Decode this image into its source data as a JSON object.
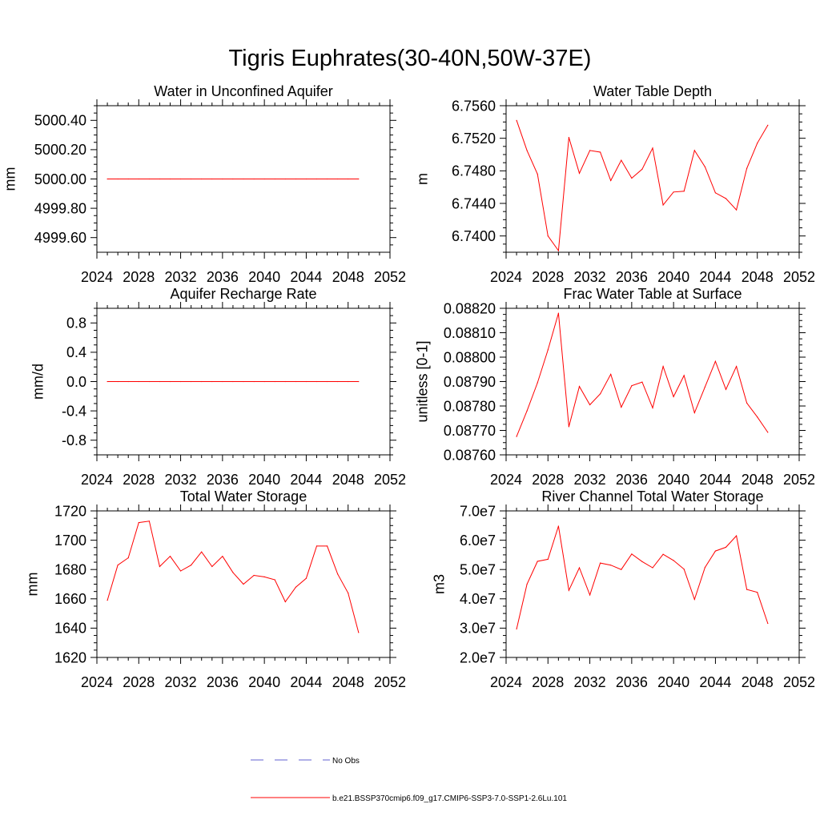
{
  "figure": {
    "title": "Tigris Euphrates(30-40N,50W-37E)"
  },
  "legend": {
    "obs_label": "No Obs",
    "model_label": "b.e21.BSSP370cmip6.f09_g17.CMIP6-SSP3-7.0-SSP1-2.6Lu.101",
    "obs_color": "#6060d0",
    "model_color": "#ff0000"
  },
  "chart_data": [
    {
      "type": "line",
      "title": "Water in Unconfined Aquifer",
      "ylabel": "mm",
      "xlim": [
        2024,
        2052
      ],
      "ylim": [
        4999.5,
        5000.5
      ],
      "xticks": [
        "2024",
        "2028",
        "2032",
        "2036",
        "2040",
        "2044",
        "2048",
        "2052"
      ],
      "yticks": [
        "5000.40",
        "5000.20",
        "5000.00",
        "4999.80",
        "4999.60"
      ],
      "x": [
        2025,
        2026,
        2027,
        2028,
        2029,
        2030,
        2031,
        2032,
        2033,
        2034,
        2035,
        2036,
        2037,
        2038,
        2039,
        2040,
        2041,
        2042,
        2043,
        2044,
        2045,
        2046,
        2047,
        2048,
        2049
      ],
      "series": [
        {
          "values": [
            5000,
            5000,
            5000,
            5000,
            5000,
            5000,
            5000,
            5000,
            5000,
            5000,
            5000,
            5000,
            5000,
            5000,
            5000,
            5000,
            5000,
            5000,
            5000,
            5000,
            5000,
            5000,
            5000,
            5000,
            5000
          ]
        }
      ]
    },
    {
      "type": "line",
      "title": "Water Table Depth",
      "ylabel": "m",
      "xlim": [
        2024,
        2052
      ],
      "ylim": [
        6.738,
        6.756
      ],
      "xticks": [
        "2024",
        "2028",
        "2032",
        "2036",
        "2040",
        "2044",
        "2048",
        "2052"
      ],
      "yticks": [
        "6.7560",
        "6.7520",
        "6.7480",
        "6.7440",
        "6.7400"
      ],
      "x": [
        2025,
        2026,
        2027,
        2028,
        2029,
        2030,
        2031,
        2032,
        2033,
        2034,
        2035,
        2036,
        2037,
        2038,
        2039,
        2040,
        2041,
        2042,
        2043,
        2044,
        2045,
        2046,
        2047,
        2048,
        2049
      ],
      "series": [
        {
          "values": [
            6.7542,
            6.7505,
            6.7476,
            6.74,
            6.7382,
            6.7521,
            6.7477,
            6.7505,
            6.7503,
            6.7468,
            6.7493,
            6.7471,
            6.7482,
            6.7508,
            6.7438,
            6.7454,
            6.7455,
            6.7505,
            6.7485,
            6.7453,
            6.7446,
            6.7432,
            6.7483,
            6.7514,
            6.7536
          ]
        }
      ]
    },
    {
      "type": "line",
      "title": "Aquifer Recharge Rate",
      "ylabel": "mm/d",
      "xlim": [
        2024,
        2052
      ],
      "ylim": [
        -1.0,
        1.0
      ],
      "xticks": [
        "2024",
        "2028",
        "2032",
        "2036",
        "2040",
        "2044",
        "2048",
        "2052"
      ],
      "yticks": [
        "0.8",
        "0.4",
        "0.0",
        "-0.4",
        "-0.8"
      ],
      "x": [
        2025,
        2026,
        2027,
        2028,
        2029,
        2030,
        2031,
        2032,
        2033,
        2034,
        2035,
        2036,
        2037,
        2038,
        2039,
        2040,
        2041,
        2042,
        2043,
        2044,
        2045,
        2046,
        2047,
        2048,
        2049
      ],
      "series": [
        {
          "values": [
            0,
            0,
            0,
            0,
            0,
            0,
            0,
            0,
            0,
            0,
            0,
            0,
            0,
            0,
            0,
            0,
            0,
            0,
            0,
            0,
            0,
            0,
            0,
            0,
            0
          ]
        }
      ]
    },
    {
      "type": "line",
      "title": "Frac Water Table at Surface",
      "ylabel": "unitless [0-1]",
      "xlim": [
        2024,
        2052
      ],
      "ylim": [
        0.0876,
        0.0882
      ],
      "xticks": [
        "2024",
        "2028",
        "2032",
        "2036",
        "2040",
        "2044",
        "2048",
        "2052"
      ],
      "yticks": [
        "0.08820",
        "0.08810",
        "0.08800",
        "0.08790",
        "0.08780",
        "0.08770",
        "0.08760"
      ],
      "x": [
        2025,
        2026,
        2027,
        2028,
        2029,
        2030,
        2031,
        2032,
        2033,
        2034,
        2035,
        2036,
        2037,
        2038,
        2039,
        2040,
        2041,
        2042,
        2043,
        2044,
        2045,
        2046,
        2047,
        2048,
        2049
      ],
      "series": [
        {
          "values": [
            0.087675,
            0.08778,
            0.087895,
            0.08803,
            0.08818,
            0.087715,
            0.08788,
            0.087805,
            0.08785,
            0.08793,
            0.087795,
            0.087883,
            0.087898,
            0.087792,
            0.087962,
            0.087838,
            0.087925,
            0.087772,
            0.087878,
            0.087983,
            0.087868,
            0.087962,
            0.087812,
            0.087755,
            0.087692
          ]
        }
      ]
    },
    {
      "type": "line",
      "title": "Total Water Storage",
      "ylabel": "mm",
      "xlim": [
        2024,
        2052
      ],
      "ylim": [
        1620,
        1720
      ],
      "xticks": [
        "2024",
        "2028",
        "2032",
        "2036",
        "2040",
        "2044",
        "2048",
        "2052"
      ],
      "yticks": [
        "1720",
        "1700",
        "1680",
        "1660",
        "1640",
        "1620"
      ],
      "x": [
        2025,
        2026,
        2027,
        2028,
        2029,
        2030,
        2031,
        2032,
        2033,
        2034,
        2035,
        2036,
        2037,
        2038,
        2039,
        2040,
        2041,
        2042,
        2043,
        2044,
        2045,
        2046,
        2047,
        2048,
        2049
      ],
      "series": [
        {
          "values": [
            1659,
            1683,
            1688,
            1712,
            1713,
            1682,
            1689,
            1679,
            1683,
            1692,
            1682,
            1689,
            1678,
            1670,
            1676,
            1675,
            1673,
            1658,
            1668,
            1674,
            1696,
            1696,
            1677,
            1664,
            1637
          ]
        }
      ]
    },
    {
      "type": "line",
      "title": "River Channel Total Water Storage",
      "ylabel": "m3",
      "xlim": [
        2024,
        2052
      ],
      "ylim": [
        20000000,
        70000000
      ],
      "xticks": [
        "2024",
        "2028",
        "2032",
        "2036",
        "2040",
        "2044",
        "2048",
        "2052"
      ],
      "yticks": [
        "7.0e7",
        "6.0e7",
        "5.0e7",
        "4.0e7",
        "3.0e7",
        "2.0e7"
      ],
      "x": [
        2025,
        2026,
        2027,
        2028,
        2029,
        2030,
        2031,
        2032,
        2033,
        2034,
        2035,
        2036,
        2037,
        2038,
        2039,
        2040,
        2041,
        2042,
        2043,
        2044,
        2045,
        2046,
        2047,
        2048,
        2049
      ],
      "series": [
        {
          "values": [
            29700000,
            45000000,
            52800000,
            53500000,
            64800000,
            42900000,
            50600000,
            41300000,
            52200000,
            51500000,
            50000000,
            55300000,
            52700000,
            50600000,
            55200000,
            53100000,
            50100000,
            39800000,
            50700000,
            56300000,
            57600000,
            61500000,
            43200000,
            42200000,
            31600000
          ]
        }
      ]
    }
  ]
}
